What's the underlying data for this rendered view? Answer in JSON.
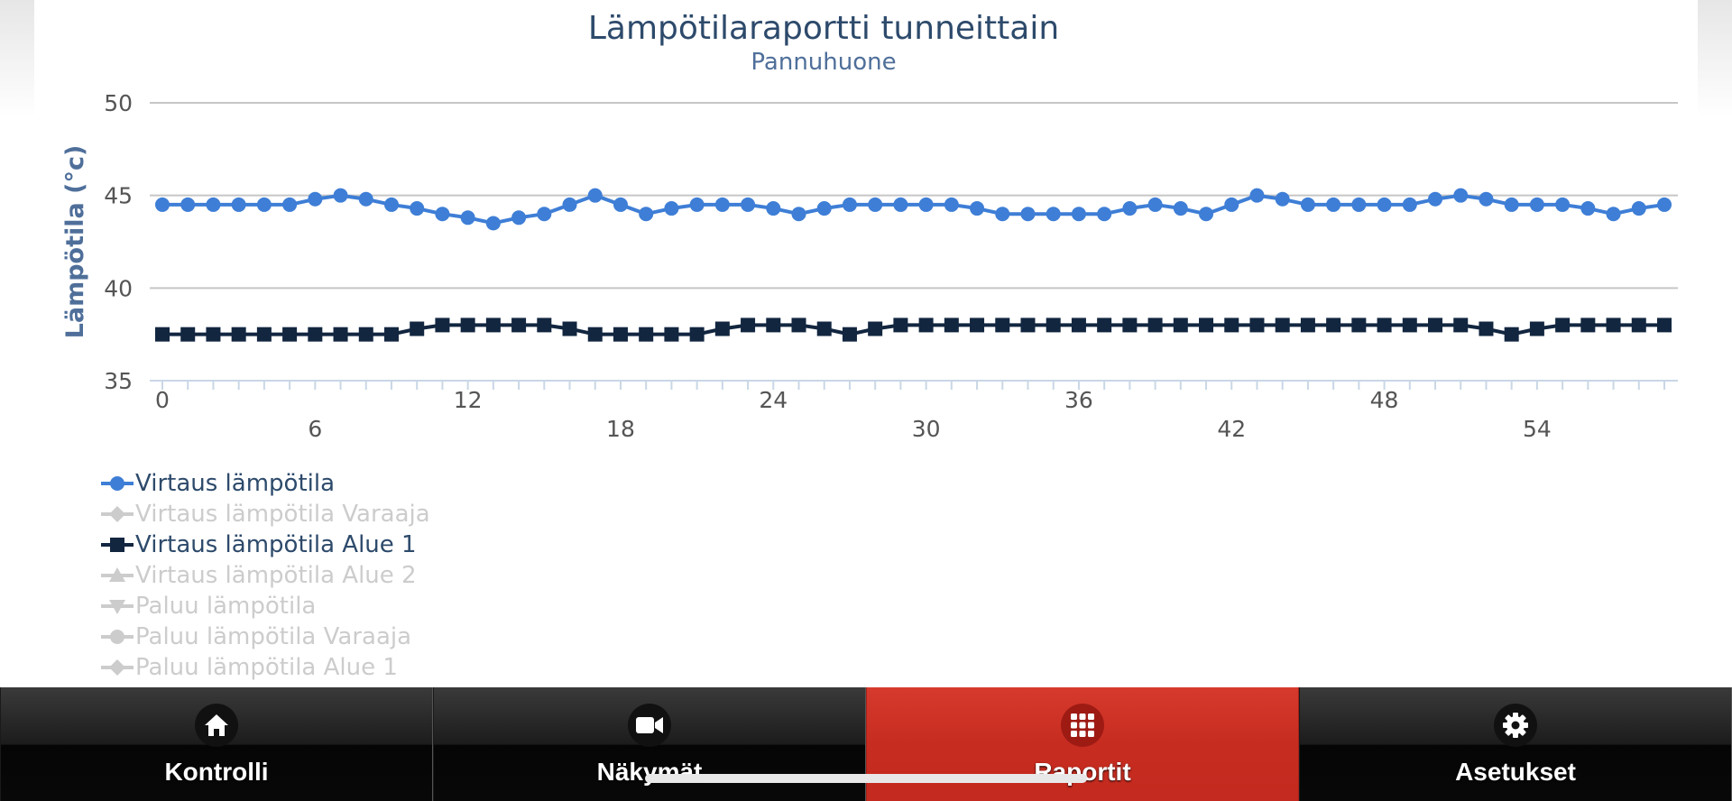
{
  "tabs": [
    {
      "label": "Kontrolli",
      "icon": "home-icon",
      "active": false
    },
    {
      "label": "Näkymät",
      "icon": "video-camera-icon",
      "active": false
    },
    {
      "label": "Raportit",
      "icon": "grid-icon",
      "active": true
    },
    {
      "label": "Asetukset",
      "icon": "gear-icon",
      "active": false
    }
  ],
  "colors": {
    "title": "#2d4a6b",
    "subtitle": "#4f6f9a",
    "series_virtaus": "#3e7ed6",
    "series_alue1": "#122640",
    "legend_hidden": "#cccccc",
    "tab_active": "#c92d21"
  },
  "chart_data": {
    "type": "line",
    "title": "Lämpötilaraportti tunneittain",
    "subtitle": "Pannuhuone",
    "ylabel": "Lämpötila (°c)",
    "xlabel": "",
    "ylim": [
      35,
      50
    ],
    "yticks": [
      35,
      40,
      45,
      50
    ],
    "xlim": [
      0,
      59
    ],
    "xticks_row1": [
      0,
      12,
      24,
      36,
      48
    ],
    "xticks_row2": [
      6,
      18,
      30,
      42,
      54
    ],
    "x": [
      0,
      1,
      2,
      3,
      4,
      5,
      6,
      7,
      8,
      9,
      10,
      11,
      12,
      13,
      14,
      15,
      16,
      17,
      18,
      19,
      20,
      21,
      22,
      23,
      24,
      25,
      26,
      27,
      28,
      29,
      30,
      31,
      32,
      33,
      34,
      35,
      36,
      37,
      38,
      39,
      40,
      41,
      42,
      43,
      44,
      45,
      46,
      47,
      48,
      49,
      50,
      51,
      52,
      53,
      54,
      55,
      56,
      57,
      58,
      59
    ],
    "series": [
      {
        "name": "Virtaus lämpötila",
        "visible": true,
        "marker": "circle",
        "values": [
          44.5,
          44.5,
          44.5,
          44.5,
          44.5,
          44.5,
          44.8,
          45.0,
          44.8,
          44.5,
          44.3,
          44.0,
          43.8,
          43.5,
          43.8,
          44.0,
          44.5,
          45.0,
          44.5,
          44.0,
          44.3,
          44.5,
          44.5,
          44.5,
          44.3,
          44.0,
          44.3,
          44.5,
          44.5,
          44.5,
          44.5,
          44.5,
          44.3,
          44.0,
          44.0,
          44.0,
          44.0,
          44.0,
          44.3,
          44.5,
          44.3,
          44.0,
          44.5,
          45.0,
          44.8,
          44.5,
          44.5,
          44.5,
          44.5,
          44.5,
          44.8,
          45.0,
          44.8,
          44.5,
          44.5,
          44.5,
          44.3,
          44.0,
          44.3,
          44.5
        ]
      },
      {
        "name": "Virtaus lämpötila Varaaja",
        "visible": false,
        "marker": "diamond"
      },
      {
        "name": "Virtaus lämpötila Alue 1",
        "visible": true,
        "marker": "square",
        "values": [
          37.5,
          37.5,
          37.5,
          37.5,
          37.5,
          37.5,
          37.5,
          37.5,
          37.5,
          37.5,
          37.8,
          38.0,
          38.0,
          38.0,
          38.0,
          38.0,
          37.8,
          37.5,
          37.5,
          37.5,
          37.5,
          37.5,
          37.8,
          38.0,
          38.0,
          38.0,
          37.8,
          37.5,
          37.8,
          38.0,
          38.0,
          38.0,
          38.0,
          38.0,
          38.0,
          38.0,
          38.0,
          38.0,
          38.0,
          38.0,
          38.0,
          38.0,
          38.0,
          38.0,
          38.0,
          38.0,
          38.0,
          38.0,
          38.0,
          38.0,
          38.0,
          38.0,
          37.8,
          37.5,
          37.8,
          38.0,
          38.0,
          38.0,
          38.0,
          38.0
        ]
      },
      {
        "name": "Virtaus lämpötila Alue 2",
        "visible": false,
        "marker": "triangle"
      },
      {
        "name": "Paluu lämpötila",
        "visible": false,
        "marker": "triangle-down"
      },
      {
        "name": "Paluu lämpötila Varaaja",
        "visible": false,
        "marker": "circle"
      },
      {
        "name": "Paluu lämpötila Alue 1",
        "visible": false,
        "marker": "diamond"
      }
    ]
  }
}
